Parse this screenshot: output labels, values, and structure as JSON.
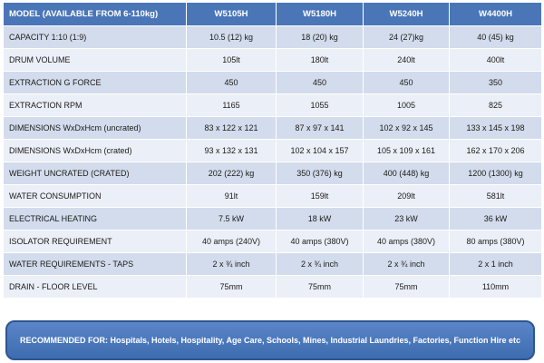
{
  "table": {
    "header": [
      "MODEL (AVAILABLE FROM 6-110kg)",
      "W5105H",
      "W5180H",
      "W5240H",
      "W4400H"
    ],
    "rows": [
      {
        "label": "CAPACITY 1:10 (1:9)",
        "values": [
          "10.5 (12) kg",
          "18 (20) kg",
          "24 (27)kg",
          "40 (45) kg"
        ]
      },
      {
        "label": "DRUM VOLUME",
        "values": [
          "105lt",
          "180lt",
          "240lt",
          "400lt"
        ]
      },
      {
        "label": "EXTRACTION G FORCE",
        "values": [
          "450",
          "450",
          "450",
          "350"
        ]
      },
      {
        "label": "EXTRACTION RPM",
        "values": [
          "1165",
          "1055",
          "1005",
          "825"
        ]
      },
      {
        "label": "DIMENSIONS WxDxHcm (uncrated)",
        "values": [
          "83 x 122 x 121",
          "87 x 97 x 141",
          "102 x 92 x 145",
          "133 x 145 x 198"
        ]
      },
      {
        "label": "DIMENSIONS WxDxHcm (crated)",
        "values": [
          "93 x 132 x 131",
          "102 x 104 x 157",
          "105 x 109 x 161",
          "162 x 170 x 206"
        ]
      },
      {
        "label": "WEIGHT UNCRATED (CRATED)",
        "values": [
          "202 (222) kg",
          "350 (376) kg",
          "400 (448) kg",
          "1200 (1300) kg"
        ]
      },
      {
        "label": "WATER CONSUMPTION",
        "values": [
          "91lt",
          "159lt",
          "209lt",
          "581lt"
        ]
      },
      {
        "label": "ELECTRICAL HEATING",
        "values": [
          "7.5 kW",
          "18 kW",
          "23 kW",
          "36 kW"
        ]
      },
      {
        "label": "ISOLATOR REQUIREMENT",
        "values": [
          "40 amps (240V)",
          "40 amps (380V)",
          "40 amps (380V)",
          "80 amps (380V)"
        ]
      },
      {
        "label": "WATER REQUIREMENTS - TAPS",
        "values": [
          "2 x ¾ inch",
          "2 x ¾ inch",
          "2 x ¾ inch",
          "2 x 1 inch"
        ]
      },
      {
        "label": "DRAIN - FLOOR LEVEL",
        "values": [
          "75mm",
          "75mm",
          "75mm",
          "110mm"
        ]
      }
    ]
  },
  "banner": {
    "text": "RECOMMENDED FOR: Hospitals, Hotels, Hospitality, Age Care, Schools, Mines, Industrial Laundries, Factories, Function Hire etc"
  },
  "colors": {
    "header_bg": "#4a76b8",
    "row_dark": "#d3dcec",
    "row_light": "#ebeff7",
    "banner_bg": "#4a76b8"
  }
}
